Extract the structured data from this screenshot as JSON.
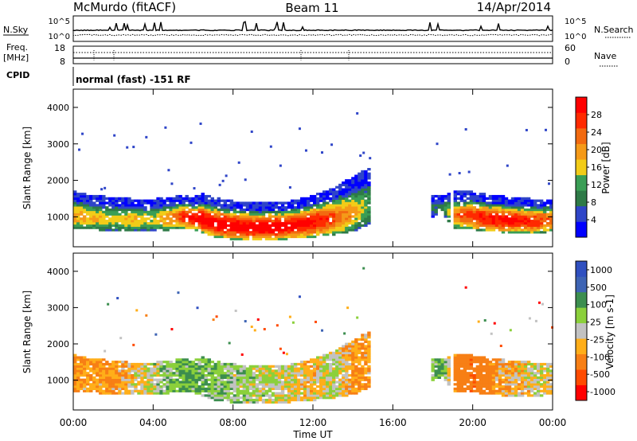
{
  "header": {
    "station": "McMurdo (fitACF)",
    "beam": "Beam 11",
    "date": "14/Apr/2014"
  },
  "noise_panel": {
    "left_label": "N.Sky",
    "right_label": "N.Search",
    "ticks_left": [
      "10^5",
      "10^0"
    ],
    "ticks_right": [
      "10^5",
      "10^0"
    ]
  },
  "freq_panel": {
    "left_label_1": "Freq.",
    "left_label_2": "[MHz]",
    "left_ticks": [
      "18",
      "8"
    ],
    "right_label": "Nave",
    "right_ticks": [
      "60",
      "0"
    ]
  },
  "cpid_panel": {
    "left_label": "CPID",
    "mode_text": "normal (fast) -151 RF"
  },
  "colors": {
    "power": [
      "#0000ff",
      "#2f45c8",
      "#2e7a47",
      "#3a9e55",
      "#f2cc18",
      "#f59a18",
      "#f26a10",
      "#ff2a00",
      "#ff0000"
    ],
    "velocity": [
      "#ff0000",
      "#ff4b00",
      "#f77f15",
      "#ffae19",
      "#c2c2c2",
      "#8bd03b",
      "#3c8e4f",
      "#3e64b4",
      "#3050c0"
    ]
  },
  "chart_data": [
    {
      "type": "heatmap",
      "title": "Power",
      "xlabel": "",
      "ylabel": "Slant Range [km]",
      "xlim": [
        0,
        24
      ],
      "ylim": [
        180,
        4500
      ],
      "x_ticks": [
        "00:00",
        "04:00",
        "08:00",
        "12:00",
        "16:00",
        "20:00",
        "00:00"
      ],
      "y_ticks": [
        "1000",
        "2000",
        "3000",
        "4000"
      ],
      "y_tick_values": [
        1000,
        2000,
        3000,
        4000
      ],
      "colorbar": {
        "label": "Power [dB]",
        "range": [
          0,
          32
        ],
        "ticks": [
          "4",
          "8",
          "12",
          "16",
          "20",
          "24",
          "28"
        ]
      },
      "echo_profile": {
        "hours": [
          0,
          1,
          2,
          3,
          4,
          5,
          5.5,
          6,
          6.5,
          7,
          8,
          9,
          10,
          11,
          12,
          13,
          14,
          14.8,
          18,
          18.5,
          19,
          20,
          21,
          22,
          23,
          24
        ],
        "band_low_km": [
          700,
          650,
          620,
          610,
          620,
          650,
          700,
          650,
          550,
          450,
          380,
          360,
          370,
          400,
          450,
          500,
          600,
          800,
          1000,
          1100,
          700,
          650,
          600,
          560,
          550,
          600
        ],
        "band_high_km": [
          1700,
          1600,
          1550,
          1500,
          1500,
          1550,
          1600,
          1550,
          1650,
          1550,
          1450,
          1400,
          1400,
          1450,
          1600,
          1800,
          2100,
          2350,
          1600,
          1600,
          1700,
          1700,
          1600,
          1550,
          1500,
          1500
        ],
        "peak_power_db": [
          20,
          18,
          16,
          18,
          16,
          22,
          28,
          30,
          32,
          32,
          32,
          32,
          32,
          31,
          30,
          26,
          20,
          12,
          8,
          8,
          22,
          28,
          30,
          30,
          28,
          24
        ]
      }
    },
    {
      "type": "heatmap",
      "title": "Velocity",
      "xlabel": "Time UT",
      "ylabel": "Slant Range [km]",
      "xlim": [
        0,
        24
      ],
      "ylim": [
        180,
        4500
      ],
      "x_ticks": [
        "00:00",
        "04:00",
        "08:00",
        "12:00",
        "16:00",
        "20:00",
        "00:00"
      ],
      "y_ticks": [
        "1000",
        "2000",
        "3000",
        "4000"
      ],
      "y_tick_values": [
        1000,
        2000,
        3000,
        4000
      ],
      "colorbar": {
        "label": "Velocity [m s-1]",
        "range": [
          -1000,
          1000
        ],
        "ticks": [
          "1000",
          "500",
          "100",
          "25",
          "-25",
          "-100",
          "-500",
          "-1000"
        ]
      },
      "echo_profile": {
        "hours": [
          0,
          2,
          4,
          5.5,
          6.5,
          8,
          10,
          12,
          13,
          14,
          14.8,
          18.5,
          19,
          20,
          21,
          22,
          23,
          24
        ],
        "dominant_velocity_ms": [
          -100,
          -100,
          25,
          100,
          100,
          50,
          25,
          -50,
          25,
          -100,
          -100,
          100,
          -100,
          -500,
          -100,
          -50,
          -25,
          -25
        ]
      }
    }
  ]
}
